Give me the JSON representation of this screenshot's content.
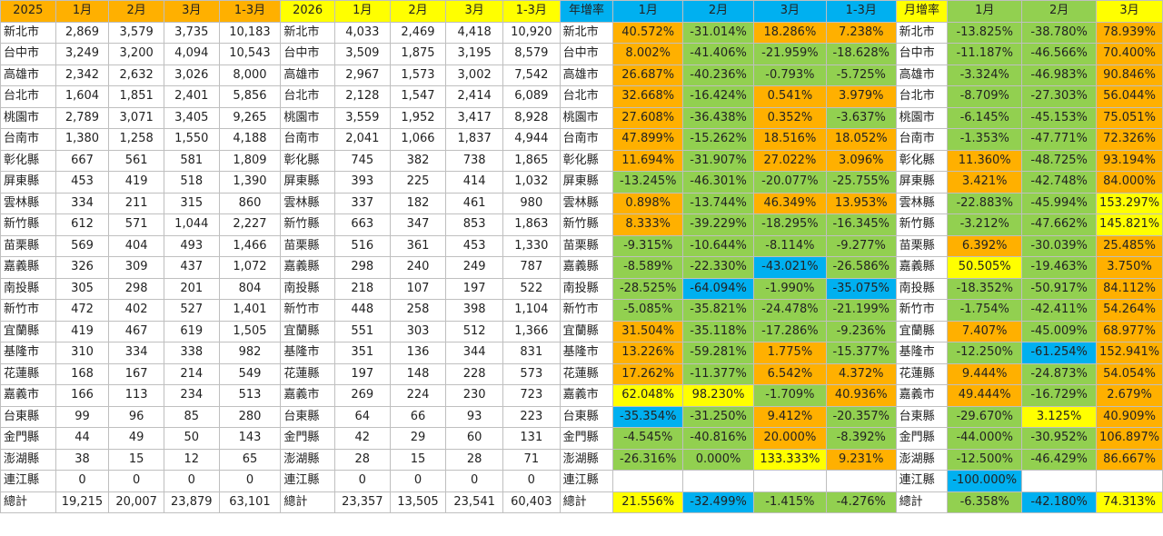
{
  "colors": {
    "orange": "#ffb000",
    "yellow": "#ffff00",
    "blue": "#00b0f0",
    "green": "#92d050",
    "white": "#ffffff"
  },
  "headers": [
    {
      "text": "2025",
      "color": "orange"
    },
    {
      "text": "1月",
      "color": "orange"
    },
    {
      "text": "2月",
      "color": "orange"
    },
    {
      "text": "3月",
      "color": "orange"
    },
    {
      "text": "1-3月",
      "color": "orange"
    },
    {
      "text": "2026",
      "color": "yellow"
    },
    {
      "text": "1月",
      "color": "yellow"
    },
    {
      "text": "2月",
      "color": "yellow"
    },
    {
      "text": "3月",
      "color": "yellow"
    },
    {
      "text": "1-3月",
      "color": "yellow"
    },
    {
      "text": "年增率",
      "color": "blue"
    },
    {
      "text": "1月",
      "color": "blue"
    },
    {
      "text": "2月",
      "color": "blue"
    },
    {
      "text": "3月",
      "color": "blue"
    },
    {
      "text": "1-3月",
      "color": "blue"
    },
    {
      "text": "月增率",
      "color": "yellow"
    },
    {
      "text": "1月",
      "color": "green"
    },
    {
      "text": "2月",
      "color": "green"
    },
    {
      "text": "3月",
      "color": "yellow"
    }
  ],
  "rows": [
    {
      "region": "新北市",
      "y2025": [
        "2,869",
        "3,579",
        "3,735",
        "10,183"
      ],
      "y2026": [
        "4,033",
        "2,469",
        "4,418",
        "10,920"
      ],
      "yoy": [
        [
          "40.572%",
          "o"
        ],
        [
          "-31.014%",
          "g"
        ],
        [
          "18.286%",
          "o"
        ],
        [
          "7.238%",
          "o"
        ]
      ],
      "mom": [
        [
          "-13.825%",
          "g"
        ],
        [
          "-38.780%",
          "g"
        ],
        [
          "78.939%",
          "o"
        ]
      ]
    },
    {
      "region": "台中市",
      "y2025": [
        "3,249",
        "3,200",
        "4,094",
        "10,543"
      ],
      "y2026": [
        "3,509",
        "1,875",
        "3,195",
        "8,579"
      ],
      "yoy": [
        [
          "8.002%",
          "o"
        ],
        [
          "-41.406%",
          "g"
        ],
        [
          "-21.959%",
          "g"
        ],
        [
          "-18.628%",
          "g"
        ]
      ],
      "mom": [
        [
          "-11.187%",
          "g"
        ],
        [
          "-46.566%",
          "g"
        ],
        [
          "70.400%",
          "o"
        ]
      ]
    },
    {
      "region": "高雄市",
      "y2025": [
        "2,342",
        "2,632",
        "3,026",
        "8,000"
      ],
      "y2026": [
        "2,967",
        "1,573",
        "3,002",
        "7,542"
      ],
      "yoy": [
        [
          "26.687%",
          "o"
        ],
        [
          "-40.236%",
          "g"
        ],
        [
          "-0.793%",
          "g"
        ],
        [
          "-5.725%",
          "g"
        ]
      ],
      "mom": [
        [
          "-3.324%",
          "g"
        ],
        [
          "-46.983%",
          "g"
        ],
        [
          "90.846%",
          "o"
        ]
      ]
    },
    {
      "region": "台北市",
      "y2025": [
        "1,604",
        "1,851",
        "2,401",
        "5,856"
      ],
      "y2026": [
        "2,128",
        "1,547",
        "2,414",
        "6,089"
      ],
      "yoy": [
        [
          "32.668%",
          "o"
        ],
        [
          "-16.424%",
          "g"
        ],
        [
          "0.541%",
          "o"
        ],
        [
          "3.979%",
          "o"
        ]
      ],
      "mom": [
        [
          "-8.709%",
          "g"
        ],
        [
          "-27.303%",
          "g"
        ],
        [
          "56.044%",
          "o"
        ]
      ]
    },
    {
      "region": "桃園市",
      "y2025": [
        "2,789",
        "3,071",
        "3,405",
        "9,265"
      ],
      "y2026": [
        "3,559",
        "1,952",
        "3,417",
        "8,928"
      ],
      "yoy": [
        [
          "27.608%",
          "o"
        ],
        [
          "-36.438%",
          "g"
        ],
        [
          "0.352%",
          "o"
        ],
        [
          "-3.637%",
          "g"
        ]
      ],
      "mom": [
        [
          "-6.145%",
          "g"
        ],
        [
          "-45.153%",
          "g"
        ],
        [
          "75.051%",
          "o"
        ]
      ]
    },
    {
      "region": "台南市",
      "y2025": [
        "1,380",
        "1,258",
        "1,550",
        "4,188"
      ],
      "y2026": [
        "2,041",
        "1,066",
        "1,837",
        "4,944"
      ],
      "yoy": [
        [
          "47.899%",
          "o"
        ],
        [
          "-15.262%",
          "g"
        ],
        [
          "18.516%",
          "o"
        ],
        [
          "18.052%",
          "o"
        ]
      ],
      "mom": [
        [
          "-1.353%",
          "g"
        ],
        [
          "-47.771%",
          "g"
        ],
        [
          "72.326%",
          "o"
        ]
      ]
    },
    {
      "region": "彰化縣",
      "y2025": [
        "667",
        "561",
        "581",
        "1,809"
      ],
      "y2026": [
        "745",
        "382",
        "738",
        "1,865"
      ],
      "yoy": [
        [
          "11.694%",
          "o"
        ],
        [
          "-31.907%",
          "g"
        ],
        [
          "27.022%",
          "o"
        ],
        [
          "3.096%",
          "o"
        ]
      ],
      "mom": [
        [
          "11.360%",
          "o"
        ],
        [
          "-48.725%",
          "g"
        ],
        [
          "93.194%",
          "o"
        ]
      ]
    },
    {
      "region": "屏東縣",
      "y2025": [
        "453",
        "419",
        "518",
        "1,390"
      ],
      "y2026": [
        "393",
        "225",
        "414",
        "1,032"
      ],
      "yoy": [
        [
          "-13.245%",
          "g"
        ],
        [
          "-46.301%",
          "g"
        ],
        [
          "-20.077%",
          "g"
        ],
        [
          "-25.755%",
          "g"
        ]
      ],
      "mom": [
        [
          "3.421%",
          "o"
        ],
        [
          "-42.748%",
          "g"
        ],
        [
          "84.000%",
          "o"
        ]
      ]
    },
    {
      "region": "雲林縣",
      "y2025": [
        "334",
        "211",
        "315",
        "860"
      ],
      "y2026": [
        "337",
        "182",
        "461",
        "980"
      ],
      "yoy": [
        [
          "0.898%",
          "o"
        ],
        [
          "-13.744%",
          "g"
        ],
        [
          "46.349%",
          "o"
        ],
        [
          "13.953%",
          "o"
        ]
      ],
      "mom": [
        [
          "-22.883%",
          "g"
        ],
        [
          "-45.994%",
          "g"
        ],
        [
          "153.297%",
          "y"
        ]
      ]
    },
    {
      "region": "新竹縣",
      "y2025": [
        "612",
        "571",
        "1,044",
        "2,227"
      ],
      "y2026": [
        "663",
        "347",
        "853",
        "1,863"
      ],
      "yoy": [
        [
          "8.333%",
          "o"
        ],
        [
          "-39.229%",
          "g"
        ],
        [
          "-18.295%",
          "g"
        ],
        [
          "-16.345%",
          "g"
        ]
      ],
      "mom": [
        [
          "-3.212%",
          "g"
        ],
        [
          "-47.662%",
          "g"
        ],
        [
          "145.821%",
          "y"
        ]
      ]
    },
    {
      "region": "苗栗縣",
      "y2025": [
        "569",
        "404",
        "493",
        "1,466"
      ],
      "y2026": [
        "516",
        "361",
        "453",
        "1,330"
      ],
      "yoy": [
        [
          "-9.315%",
          "g"
        ],
        [
          "-10.644%",
          "g"
        ],
        [
          "-8.114%",
          "g"
        ],
        [
          "-9.277%",
          "g"
        ]
      ],
      "mom": [
        [
          "6.392%",
          "o"
        ],
        [
          "-30.039%",
          "g"
        ],
        [
          "25.485%",
          "o"
        ]
      ]
    },
    {
      "region": "嘉義縣",
      "y2025": [
        "326",
        "309",
        "437",
        "1,072"
      ],
      "y2026": [
        "298",
        "240",
        "249",
        "787"
      ],
      "yoy": [
        [
          "-8.589%",
          "g"
        ],
        [
          "-22.330%",
          "g"
        ],
        [
          "-43.021%",
          "b"
        ],
        [
          "-26.586%",
          "g"
        ]
      ],
      "mom": [
        [
          "50.505%",
          "y"
        ],
        [
          "-19.463%",
          "g"
        ],
        [
          "3.750%",
          "o"
        ]
      ]
    },
    {
      "region": "南投縣",
      "y2025": [
        "305",
        "298",
        "201",
        "804"
      ],
      "y2026": [
        "218",
        "107",
        "197",
        "522"
      ],
      "yoy": [
        [
          "-28.525%",
          "g"
        ],
        [
          "-64.094%",
          "b"
        ],
        [
          "-1.990%",
          "g"
        ],
        [
          "-35.075%",
          "b"
        ]
      ],
      "mom": [
        [
          "-18.352%",
          "g"
        ],
        [
          "-50.917%",
          "g"
        ],
        [
          "84.112%",
          "o"
        ]
      ]
    },
    {
      "region": "新竹市",
      "y2025": [
        "472",
        "402",
        "527",
        "1,401"
      ],
      "y2026": [
        "448",
        "258",
        "398",
        "1,104"
      ],
      "yoy": [
        [
          "-5.085%",
          "g"
        ],
        [
          "-35.821%",
          "g"
        ],
        [
          "-24.478%",
          "g"
        ],
        [
          "-21.199%",
          "g"
        ]
      ],
      "mom": [
        [
          "-1.754%",
          "g"
        ],
        [
          "-42.411%",
          "g"
        ],
        [
          "54.264%",
          "o"
        ]
      ]
    },
    {
      "region": "宜蘭縣",
      "y2025": [
        "419",
        "467",
        "619",
        "1,505"
      ],
      "y2026": [
        "551",
        "303",
        "512",
        "1,366"
      ],
      "yoy": [
        [
          "31.504%",
          "o"
        ],
        [
          "-35.118%",
          "g"
        ],
        [
          "-17.286%",
          "g"
        ],
        [
          "-9.236%",
          "g"
        ]
      ],
      "mom": [
        [
          "7.407%",
          "o"
        ],
        [
          "-45.009%",
          "g"
        ],
        [
          "68.977%",
          "o"
        ]
      ]
    },
    {
      "region": "基隆市",
      "y2025": [
        "310",
        "334",
        "338",
        "982"
      ],
      "y2026": [
        "351",
        "136",
        "344",
        "831"
      ],
      "yoy": [
        [
          "13.226%",
          "o"
        ],
        [
          "-59.281%",
          "g"
        ],
        [
          "1.775%",
          "o"
        ],
        [
          "-15.377%",
          "g"
        ]
      ],
      "mom": [
        [
          "-12.250%",
          "g"
        ],
        [
          "-61.254%",
          "b"
        ],
        [
          "152.941%",
          "o"
        ]
      ]
    },
    {
      "region": "花蓮縣",
      "y2025": [
        "168",
        "167",
        "214",
        "549"
      ],
      "y2026": [
        "197",
        "148",
        "228",
        "573"
      ],
      "yoy": [
        [
          "17.262%",
          "o"
        ],
        [
          "-11.377%",
          "g"
        ],
        [
          "6.542%",
          "o"
        ],
        [
          "4.372%",
          "o"
        ]
      ],
      "mom": [
        [
          "9.444%",
          "o"
        ],
        [
          "-24.873%",
          "g"
        ],
        [
          "54.054%",
          "o"
        ]
      ]
    },
    {
      "region": "嘉義市",
      "y2025": [
        "166",
        "113",
        "234",
        "513"
      ],
      "y2026": [
        "269",
        "224",
        "230",
        "723"
      ],
      "yoy": [
        [
          "62.048%",
          "y"
        ],
        [
          "98.230%",
          "y"
        ],
        [
          "-1.709%",
          "g"
        ],
        [
          "40.936%",
          "o"
        ]
      ],
      "mom": [
        [
          "49.444%",
          "o"
        ],
        [
          "-16.729%",
          "g"
        ],
        [
          "2.679%",
          "o"
        ]
      ]
    },
    {
      "region": "台東縣",
      "y2025": [
        "99",
        "96",
        "85",
        "280"
      ],
      "y2026": [
        "64",
        "66",
        "93",
        "223"
      ],
      "yoy": [
        [
          "-35.354%",
          "b"
        ],
        [
          "-31.250%",
          "g"
        ],
        [
          "9.412%",
          "o"
        ],
        [
          "-20.357%",
          "g"
        ]
      ],
      "mom": [
        [
          "-29.670%",
          "g"
        ],
        [
          "3.125%",
          "y"
        ],
        [
          "40.909%",
          "o"
        ]
      ]
    },
    {
      "region": "金門縣",
      "y2025": [
        "44",
        "49",
        "50",
        "143"
      ],
      "y2026": [
        "42",
        "29",
        "60",
        "131"
      ],
      "yoy": [
        [
          "-4.545%",
          "g"
        ],
        [
          "-40.816%",
          "g"
        ],
        [
          "20.000%",
          "o"
        ],
        [
          "-8.392%",
          "g"
        ]
      ],
      "mom": [
        [
          "-44.000%",
          "g"
        ],
        [
          "-30.952%",
          "g"
        ],
        [
          "106.897%",
          "o"
        ]
      ]
    },
    {
      "region": "澎湖縣",
      "y2025": [
        "38",
        "15",
        "12",
        "65"
      ],
      "y2026": [
        "28",
        "15",
        "28",
        "71"
      ],
      "yoy": [
        [
          "-26.316%",
          "g"
        ],
        [
          "0.000%",
          "g"
        ],
        [
          "133.333%",
          "y"
        ],
        [
          "9.231%",
          "o"
        ]
      ],
      "mom": [
        [
          "-12.500%",
          "g"
        ],
        [
          "-46.429%",
          "g"
        ],
        [
          "86.667%",
          "o"
        ]
      ]
    },
    {
      "region": "連江縣",
      "y2025": [
        "0",
        "0",
        "0",
        "0"
      ],
      "y2026": [
        "0",
        "0",
        "0",
        "0"
      ],
      "yoy": [
        [
          "",
          "w"
        ],
        [
          "",
          "w"
        ],
        [
          "",
          "w"
        ],
        [
          "",
          "w"
        ]
      ],
      "mom": [
        [
          "-100.000%",
          "b"
        ],
        [
          "",
          "w"
        ],
        [
          "",
          "w"
        ]
      ]
    },
    {
      "region": "總計",
      "y2025": [
        "19,215",
        "20,007",
        "23,879",
        "63,101"
      ],
      "y2026": [
        "23,357",
        "13,505",
        "23,541",
        "60,403"
      ],
      "yoy": [
        [
          "21.556%",
          "y"
        ],
        [
          "-32.499%",
          "b"
        ],
        [
          "-1.415%",
          "g"
        ],
        [
          "-4.276%",
          "g"
        ]
      ],
      "mom": [
        [
          "-6.358%",
          "g"
        ],
        [
          "-42.180%",
          "b"
        ],
        [
          "74.313%",
          "y"
        ]
      ]
    }
  ]
}
